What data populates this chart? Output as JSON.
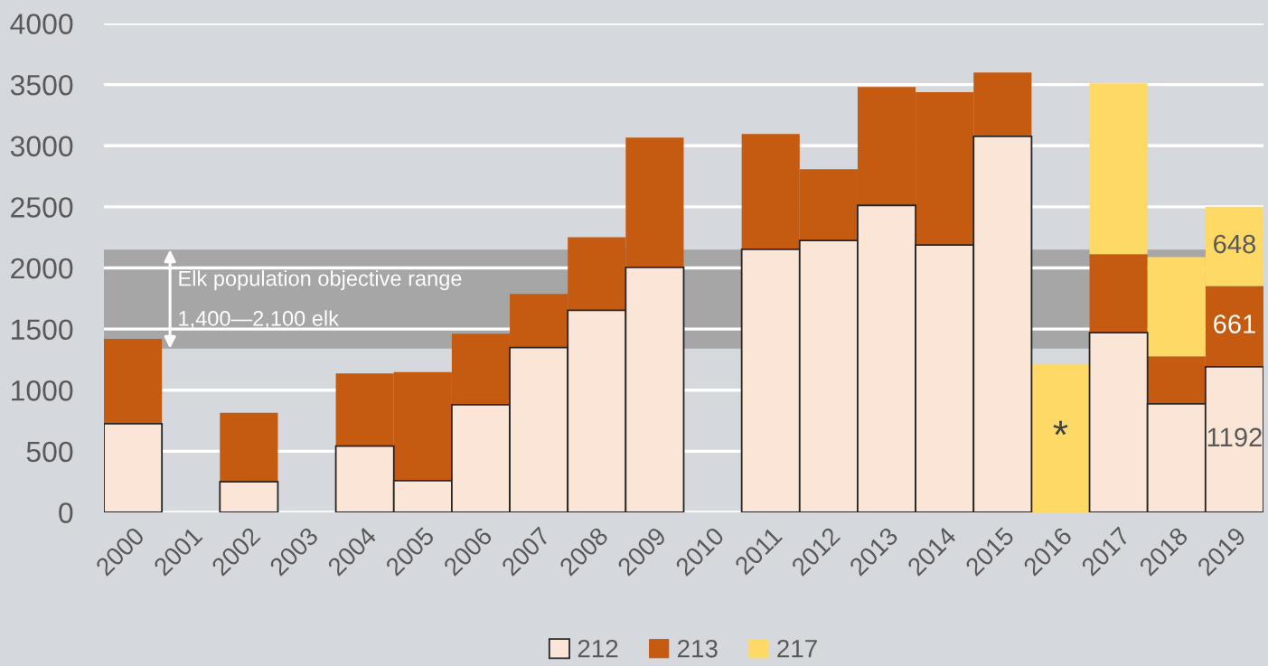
{
  "chart_data": {
    "type": "bar",
    "stacked": true,
    "categories": [
      "2000",
      "2001",
      "2002",
      "2003",
      "2004",
      "2005",
      "2006",
      "2007",
      "2008",
      "2009",
      "2010",
      "2011",
      "2012",
      "2013",
      "2014",
      "2015",
      "2016",
      "2017",
      "2018",
      "2019"
    ],
    "series": [
      {
        "name": "212",
        "color": "#fbe5d6",
        "values": [
          725,
          null,
          251,
          null,
          542,
          259,
          881,
          1349,
          1654,
          2005,
          null,
          2153,
          2224,
          2512,
          2187,
          3077,
          null,
          1471,
          888,
          1192
        ],
        "value_labels": [
          null,
          null,
          null,
          null,
          null,
          null,
          null,
          null,
          null,
          null,
          null,
          null,
          null,
          null,
          null,
          null,
          null,
          null,
          null,
          "1192"
        ]
      },
      {
        "name": "213",
        "color": "#c55a11",
        "values": [
          695,
          null,
          565,
          null,
          594,
          889,
          581,
          438,
          597,
          1061,
          null,
          944,
          583,
          969,
          1252,
          521,
          null,
          642,
          390,
          661
        ],
        "value_labels": [
          null,
          null,
          null,
          null,
          null,
          null,
          null,
          null,
          null,
          null,
          null,
          null,
          null,
          null,
          null,
          null,
          null,
          null,
          null,
          "661"
        ]
      },
      {
        "name": "217",
        "color": "#ffd966",
        "values": [
          null,
          null,
          null,
          null,
          null,
          null,
          null,
          null,
          null,
          null,
          null,
          null,
          null,
          null,
          null,
          null,
          1215,
          1397,
          810,
          648
        ],
        "value_labels": [
          null,
          null,
          null,
          null,
          null,
          null,
          null,
          null,
          null,
          null,
          null,
          null,
          null,
          null,
          null,
          null,
          "*",
          null,
          null,
          "648"
        ]
      }
    ],
    "ylim": [
      0,
      4000
    ],
    "yticks": [
      0,
      500,
      1000,
      1500,
      2000,
      2500,
      3000,
      3500,
      4000
    ],
    "grid": "y",
    "legend": "bottom",
    "bands": [
      {
        "axis": "y",
        "from": 1340,
        "to": 2150,
        "label": "Elk population objective range\n1,400—2,100 elk",
        "color": "#a6a6a6"
      }
    ]
  }
}
